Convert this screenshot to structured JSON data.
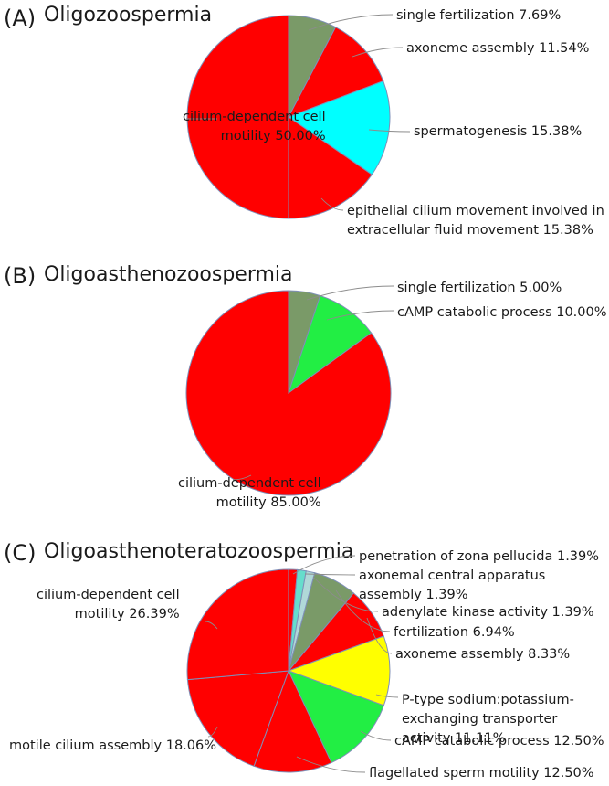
{
  "figure": {
    "name": "gene-ontology-pie-charts"
  },
  "chart_data": [
    {
      "type": "pie",
      "panel": "(A)",
      "title": "Oligozoospermia",
      "slices": [
        {
          "label_lines": [
            "single fertilization 7.69%"
          ],
          "value": 7.69,
          "color": "#7a9a68"
        },
        {
          "label_lines": [
            "axoneme assembly 11.54%"
          ],
          "value": 11.54,
          "color": "#ff0000"
        },
        {
          "label_lines": [
            "spermatogenesis 15.38%"
          ],
          "value": 15.38,
          "color": "#00ffff"
        },
        {
          "label_lines": [
            "epithelial cilium movement involved in",
            "extracellular fluid movement 15.38%"
          ],
          "value": 15.38,
          "color": "#ff0000"
        },
        {
          "label_lines": [
            "cilium-dependent cell",
            "motility 50.00%"
          ],
          "value": 50.0,
          "color": "#ff0000"
        }
      ]
    },
    {
      "type": "pie",
      "panel": "(B)",
      "title": "Oligoasthenozoospermia",
      "slices": [
        {
          "label_lines": [
            "single fertilization 5.00%"
          ],
          "value": 5.0,
          "color": "#7a9a68"
        },
        {
          "label_lines": [
            "cAMP catabolic process 10.00%"
          ],
          "value": 10.0,
          "color": "#22ee44"
        },
        {
          "label_lines": [
            "cilium-dependent cell",
            "motility 85.00%"
          ],
          "value": 85.0,
          "color": "#ff0000"
        }
      ]
    },
    {
      "type": "pie",
      "panel": "(C)",
      "title": "Oligoasthenoteratozoospermia",
      "slices": [
        {
          "label_lines": [
            "penetration of zona pellucida 1.39%"
          ],
          "value": 1.39,
          "color": "#ff0000"
        },
        {
          "label_lines": [
            "axonemal central apparatus",
            "assembly 1.39%"
          ],
          "value": 1.39,
          "color": "#66ddcc"
        },
        {
          "label_lines": [
            "adenylate kinase activity 1.39%"
          ],
          "value": 1.39,
          "color": "#b0d8d8"
        },
        {
          "label_lines": [
            "fertilization 6.94%"
          ],
          "value": 6.94,
          "color": "#7a9a68"
        },
        {
          "label_lines": [
            "axoneme assembly 8.33%"
          ],
          "value": 8.33,
          "color": "#ff0000"
        },
        {
          "label_lines": [
            "P-type sodium:potassium-",
            "exchanging transporter",
            "activity 11.11%"
          ],
          "value": 11.11,
          "color": "#ffff00"
        },
        {
          "label_lines": [
            "cAMP catabolic process 12.50%"
          ],
          "value": 12.5,
          "color": "#22ee44"
        },
        {
          "label_lines": [
            "flagellated sperm motility 12.50%"
          ],
          "value": 12.5,
          "color": "#ff0000"
        },
        {
          "label_lines": [
            "motile cilium assembly 18.06%"
          ],
          "value": 18.06,
          "color": "#ff0000"
        },
        {
          "label_lines": [
            "cilium-dependent cell",
            "motility 26.39%"
          ],
          "value": 26.39,
          "color": "#ff0000"
        }
      ]
    }
  ]
}
